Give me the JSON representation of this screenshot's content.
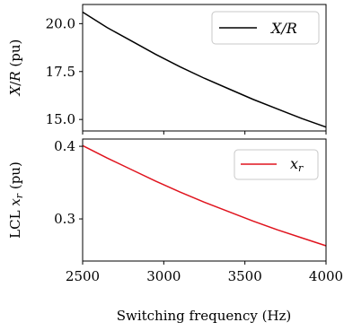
{
  "chart_data": [
    {
      "type": "line",
      "ylabel": "X/R (pu)",
      "ylim": [
        14.4,
        21.0
      ],
      "yticks": [
        {
          "value": 15.0,
          "label": "15.0"
        },
        {
          "value": 17.5,
          "label": "17.5"
        },
        {
          "value": 20.0,
          "label": "20.0"
        }
      ],
      "legend_position": "top-right",
      "series": [
        {
          "name": "X/R",
          "color": "#000000",
          "x": [
            2500,
            2650,
            2800,
            2950,
            3100,
            3250,
            3400,
            3550,
            3700,
            3850,
            4000
          ],
          "y": [
            20.6,
            19.8,
            19.1,
            18.4,
            17.75,
            17.15,
            16.6,
            16.05,
            15.55,
            15.05,
            14.6
          ]
        }
      ]
    },
    {
      "type": "line",
      "ylabel": "LCL x_r (pu)",
      "xlabel": "Switching frequency (Hz)",
      "xlim": [
        2500,
        4000
      ],
      "ylim": [
        0.242,
        0.41
      ],
      "xticks": [
        {
          "value": 2500,
          "label": "2500"
        },
        {
          "value": 3000,
          "label": "3000"
        },
        {
          "value": 3500,
          "label": "3500"
        },
        {
          "value": 4000,
          "label": "4000"
        }
      ],
      "yticks": [
        {
          "value": 0.3,
          "label": "0.3"
        },
        {
          "value": 0.4,
          "label": "0.4"
        }
      ],
      "legend_position": "top-right",
      "series": [
        {
          "name": "x_r",
          "color": "#e0141e",
          "x": [
            2500,
            2650,
            2800,
            2950,
            3100,
            3250,
            3400,
            3550,
            3700,
            3850,
            4000
          ],
          "y": [
            0.401,
            0.384,
            0.368,
            0.352,
            0.337,
            0.323,
            0.31,
            0.297,
            0.285,
            0.274,
            0.263
          ]
        }
      ]
    }
  ]
}
